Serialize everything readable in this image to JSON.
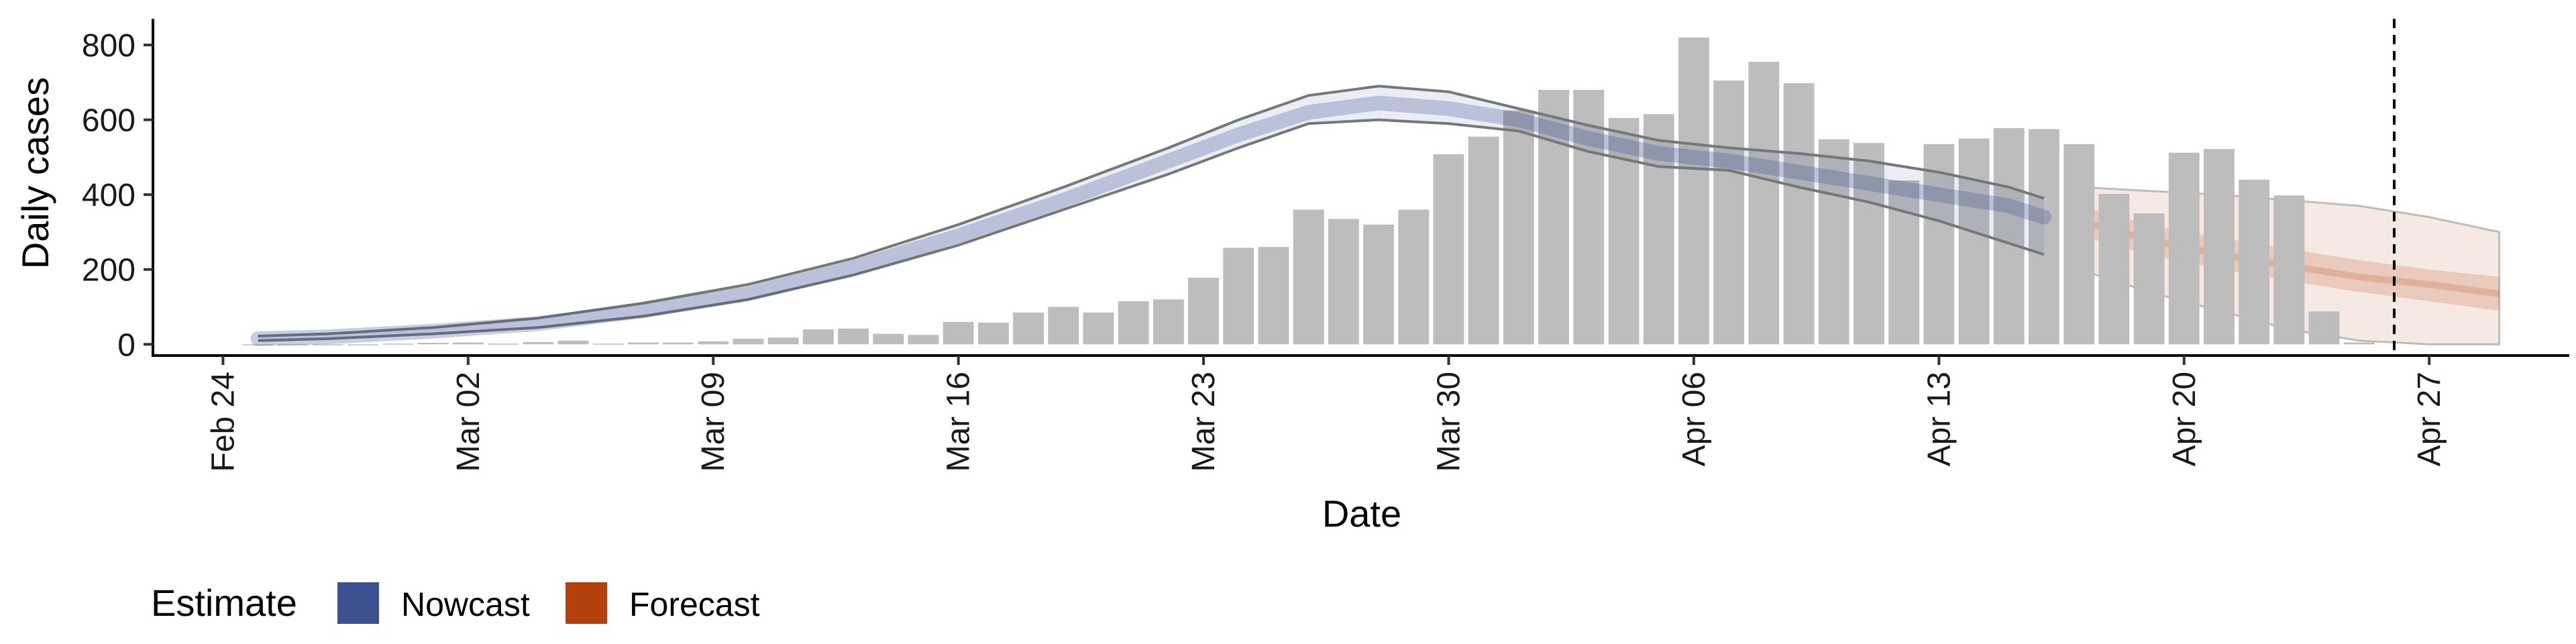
{
  "chart_data": {
    "type": "bar",
    "xlabel": "Date",
    "ylabel": "Daily cases",
    "x_ticks": [
      "2020-02-24",
      "2020-03-02",
      "2020-03-09",
      "2020-03-16",
      "2020-03-23",
      "2020-03-30",
      "2020-04-06",
      "2020-04-13",
      "2020-04-20",
      "2020-04-27"
    ],
    "x_tick_labels": [
      "Feb 24",
      "Mar 02",
      "Mar 09",
      "Mar 16",
      "Mar 23",
      "Mar 30",
      "Apr 06",
      "Apr 13",
      "Apr 20",
      "Apr 27"
    ],
    "xlim": [
      "2020-02-22",
      "2020-05-01"
    ],
    "ylim": [
      -30,
      870
    ],
    "y_ticks": [
      0,
      200,
      400,
      600,
      800
    ],
    "grid": false,
    "reference_line": {
      "date": "2020-04-26",
      "style": "dashed"
    },
    "reported_cases": {
      "dates": [
        "2020-02-25",
        "2020-02-26",
        "2020-02-27",
        "2020-02-28",
        "2020-02-29",
        "2020-03-01",
        "2020-03-02",
        "2020-03-03",
        "2020-03-04",
        "2020-03-05",
        "2020-03-06",
        "2020-03-07",
        "2020-03-08",
        "2020-03-09",
        "2020-03-10",
        "2020-03-11",
        "2020-03-12",
        "2020-03-13",
        "2020-03-14",
        "2020-03-15",
        "2020-03-16",
        "2020-03-17",
        "2020-03-18",
        "2020-03-19",
        "2020-03-20",
        "2020-03-21",
        "2020-03-22",
        "2020-03-23",
        "2020-03-24",
        "2020-03-25",
        "2020-03-26",
        "2020-03-27",
        "2020-03-28",
        "2020-03-29",
        "2020-03-30",
        "2020-03-31",
        "2020-04-01",
        "2020-04-02",
        "2020-04-03",
        "2020-04-04",
        "2020-04-05",
        "2020-04-06",
        "2020-04-07",
        "2020-04-08",
        "2020-04-09",
        "2020-04-10",
        "2020-04-11",
        "2020-04-12",
        "2020-04-13",
        "2020-04-14",
        "2020-04-15",
        "2020-04-16",
        "2020-04-17",
        "2020-04-18",
        "2020-04-19",
        "2020-04-20",
        "2020-04-21",
        "2020-04-22",
        "2020-04-23",
        "2020-04-24",
        "2020-04-25"
      ],
      "values": [
        0,
        0,
        0,
        0,
        2,
        4,
        5,
        2,
        6,
        10,
        2,
        5,
        5,
        8,
        15,
        18,
        40,
        42,
        28,
        25,
        60,
        58,
        85,
        100,
        85,
        115,
        120,
        178,
        258,
        260,
        360,
        335,
        320,
        360,
        508,
        555,
        625,
        680,
        680,
        605,
        615,
        820,
        705,
        755,
        698,
        548,
        538,
        438,
        535,
        550,
        578,
        575,
        535,
        402,
        350,
        512,
        522,
        440,
        398,
        88,
        5
      ]
    },
    "series": [
      {
        "name": "Nowcast",
        "color": "#3b5190",
        "dates": [
          "2020-02-25",
          "2020-02-27",
          "2020-03-01",
          "2020-03-04",
          "2020-03-07",
          "2020-03-10",
          "2020-03-13",
          "2020-03-16",
          "2020-03-19",
          "2020-03-22",
          "2020-03-24",
          "2020-03-26",
          "2020-03-28",
          "2020-03-30",
          "2020-04-01",
          "2020-04-03",
          "2020-04-05",
          "2020-04-07",
          "2020-04-09",
          "2020-04-11",
          "2020-04-13",
          "2020-04-15",
          "2020-04-16"
        ],
        "median": [
          15,
          20,
          35,
          55,
          90,
          135,
          205,
          290,
          385,
          490,
          560,
          620,
          645,
          630,
          600,
          550,
          510,
          490,
          460,
          430,
          400,
          370,
          340
        ],
        "lower": [
          10,
          15,
          28,
          45,
          75,
          120,
          185,
          265,
          360,
          455,
          525,
          590,
          600,
          590,
          570,
          515,
          475,
          465,
          420,
          380,
          330,
          270,
          240
        ],
        "upper": [
          22,
          28,
          45,
          70,
          110,
          160,
          230,
          320,
          420,
          525,
          600,
          665,
          690,
          675,
          630,
          585,
          545,
          525,
          510,
          490,
          460,
          420,
          390
        ]
      },
      {
        "name": "Forecast",
        "color": "#b4400e",
        "dates": [
          "2020-04-17",
          "2020-04-19",
          "2020-04-21",
          "2020-04-23",
          "2020-04-25",
          "2020-04-27",
          "2020-04-29"
        ],
        "median": [
          330,
          280,
          240,
          210,
          180,
          160,
          135
        ],
        "lower50": [
          290,
          240,
          200,
          170,
          140,
          115,
          90
        ],
        "upper50": [
          370,
          320,
          285,
          255,
          225,
          200,
          180
        ],
        "lower90": [
          200,
          140,
          90,
          40,
          10,
          0,
          0
        ],
        "upper90": [
          420,
          410,
          400,
          385,
          370,
          340,
          300
        ]
      }
    ],
    "legend": {
      "title": "Estimate",
      "items": [
        "Nowcast",
        "Forecast"
      ],
      "position": "bottom-left"
    }
  }
}
